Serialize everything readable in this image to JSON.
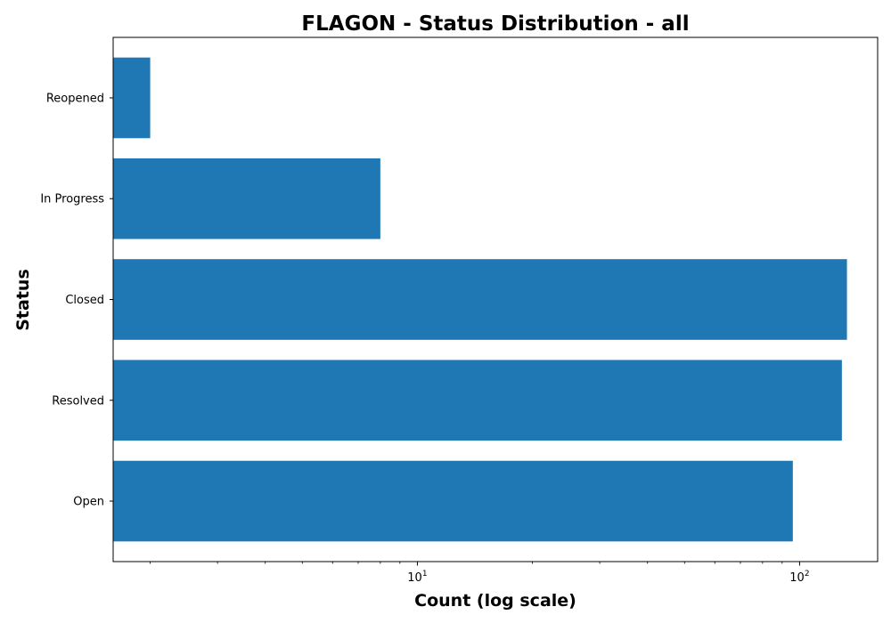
{
  "chart_data": {
    "type": "bar",
    "orientation": "horizontal",
    "title": "FLAGON - Status Distribution - all",
    "xlabel": "Count (log scale)",
    "ylabel": "Status",
    "x_scale": "log",
    "xlim": [
      1.6,
      160
    ],
    "categories": [
      "Open",
      "Resolved",
      "Closed",
      "In Progress",
      "Reopened"
    ],
    "values": [
      96,
      129,
      133,
      8,
      2
    ],
    "major_ticks": [
      {
        "base": "10",
        "exponent": "1",
        "value": 10
      },
      {
        "base": "10",
        "exponent": "2",
        "value": 100
      }
    ],
    "bar_color": "#1f77b4",
    "grid": false,
    "legend": "none"
  }
}
